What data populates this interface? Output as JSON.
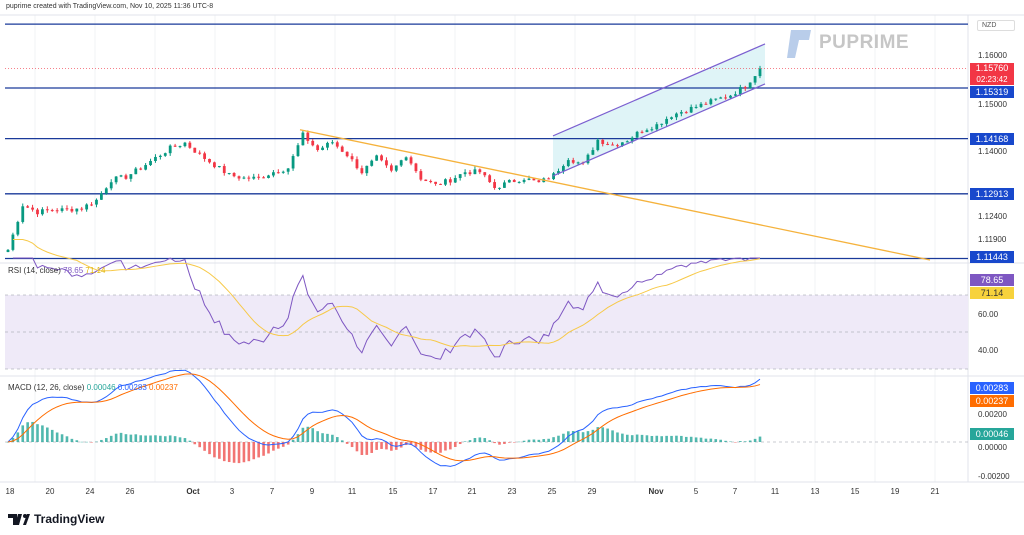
{
  "header": {
    "attribution": "puprime created with TradingView.com, Nov 10, 2025 11:36 UTC-8"
  },
  "watermark": "PUPRIME",
  "footer_logo": "TradingView",
  "currency": "NZD",
  "colors": {
    "up": "#089981",
    "down": "#f23645",
    "level_line": "#1a3a9a",
    "trendline": "#f5b23c",
    "channel": "#7b5fd0",
    "channel_fill": "#dff4f7",
    "rsi": "#7e57c2",
    "rsi_ma": "#f7c948",
    "macd": "#2962ff",
    "signal": "#ff6d00"
  },
  "price_axis": {
    "ticks": [
      "1.16000",
      "1.15000",
      "1.14000",
      "1.12400",
      "1.11900"
    ],
    "current_price": "1.15760",
    "countdown": "02:23:42",
    "levels": [
      "1.15319",
      "1.14168",
      "1.12913",
      "1.11443"
    ]
  },
  "rsi": {
    "label": "RSI (14, close)",
    "value": "78.65",
    "ma_value": "71.14",
    "ticks": [
      "60.00",
      "40.00"
    ],
    "bands": [
      70,
      50,
      30
    ]
  },
  "macd": {
    "label": "MACD (12, 26, close)",
    "hist": "0.00046",
    "macd": "0.00283",
    "signal": "0.00237",
    "ticks": [
      "0.00200",
      "0.00000",
      "-0.00200"
    ]
  },
  "x_axis": {
    "ticks": [
      "18",
      "20",
      "24",
      "26",
      "Oct",
      "3",
      "7",
      "9",
      "11",
      "15",
      "17",
      "21",
      "23",
      "25",
      "29",
      "Nov",
      "5",
      "7",
      "11",
      "13",
      "15",
      "19",
      "21"
    ]
  },
  "chart_data": {
    "type": "candlestick",
    "symbol_quote": "NZD",
    "ylim": [
      1.112,
      1.168
    ],
    "horizontal_levels": [
      1.1677,
      1.15319,
      1.14168,
      1.12913,
      1.11443
    ],
    "close_series": [
      1.1164,
      1.1266,
      1.125,
      1.1255,
      1.1255,
      1.1259,
      1.1277,
      1.1323,
      1.133,
      1.135,
      1.1373,
      1.1395,
      1.1407,
      1.138,
      1.1357,
      1.1334,
      1.1327,
      1.1327,
      1.1341,
      1.135,
      1.1425,
      1.1391,
      1.1409,
      1.138,
      1.1341,
      1.1373,
      1.1341,
      1.138,
      1.1327,
      1.1311,
      1.1323,
      1.1341,
      1.1341,
      1.1305,
      1.1318,
      1.1327,
      1.1316,
      1.1334,
      1.1373,
      1.1357,
      1.1414,
      1.1402,
      1.1414,
      1.1436,
      1.1448,
      1.147,
      1.1482,
      1.1493,
      1.1505,
      1.1516,
      1.1536,
      1.1576
    ],
    "trendline": {
      "from_price": 1.1437,
      "to_price": 1.1141,
      "note": ""
    },
    "channel": {
      "upper": [
        1.1423,
        1.1632
      ],
      "lower": [
        1.1332,
        1.1541
      ]
    }
  }
}
